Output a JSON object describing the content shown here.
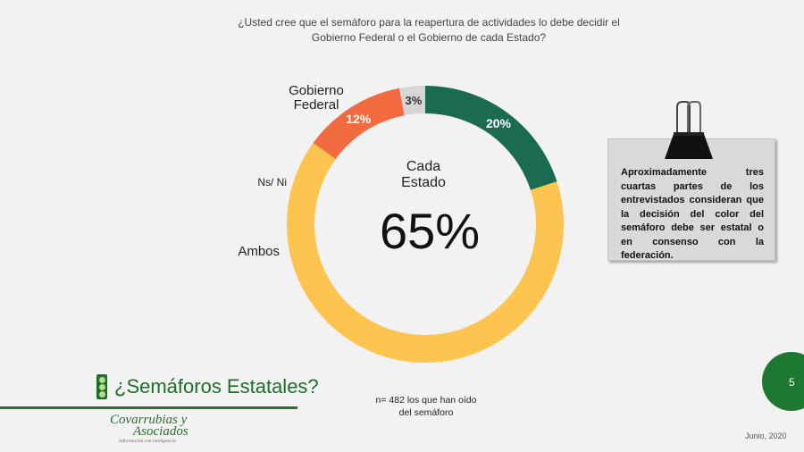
{
  "question": {
    "line1": "¿Usted cree que el semáforo para la reapertura de actividades lo debe decidir el",
    "line2": "Gobierno Federal o el Gobierno de cada Estado?"
  },
  "chart_data": {
    "type": "pie",
    "donut": true,
    "title": "",
    "series": [
      {
        "name": "Cada Estado",
        "value": 65,
        "label": "65%",
        "color": "#fdc44f"
      },
      {
        "name": "Ambos",
        "value": 12,
        "label": "12%",
        "color": "#f26a40"
      },
      {
        "name": "Ns/ Ni",
        "value": 3,
        "label": "3%",
        "color": "#d6d6d6"
      },
      {
        "name": "Gobierno Federal",
        "value": 20,
        "label": "20%",
        "color": "#1b6a52"
      }
    ],
    "center_label": [
      "Cada",
      "Estado"
    ],
    "center_value": "65%",
    "category_labels": {
      "gobierno_federal": [
        "Gobierno",
        "Federal"
      ],
      "ns_ni": "Ns/ Ni",
      "ambos": "Ambos"
    }
  },
  "note": {
    "text": "Aproximadamente tres cuartas partes de los entrevistados consideran que la decisión del color del semáforo debe ser estatal o en consenso con la federación.",
    "icon": "binder-clip-icon"
  },
  "page_number": "5",
  "section_title": "¿Semáforos Estatales?",
  "section_icon": "traffic-light-icon",
  "sample_note": {
    "line1": "n= 482 los que han oído",
    "line2": "del semáforo"
  },
  "logo": {
    "line1": "Covarrubias y",
    "line2": "Asociados",
    "tagline": "Información con inteligencia"
  },
  "date": "Junio, 2020",
  "colors": {
    "background": "#f2f2f2",
    "brand_green": "#1b7a2f",
    "cada_estado": "#fdc44f",
    "ambos": "#f26a40",
    "ns_ni": "#d6d6d6",
    "gobierno_federal": "#1b6a52"
  }
}
